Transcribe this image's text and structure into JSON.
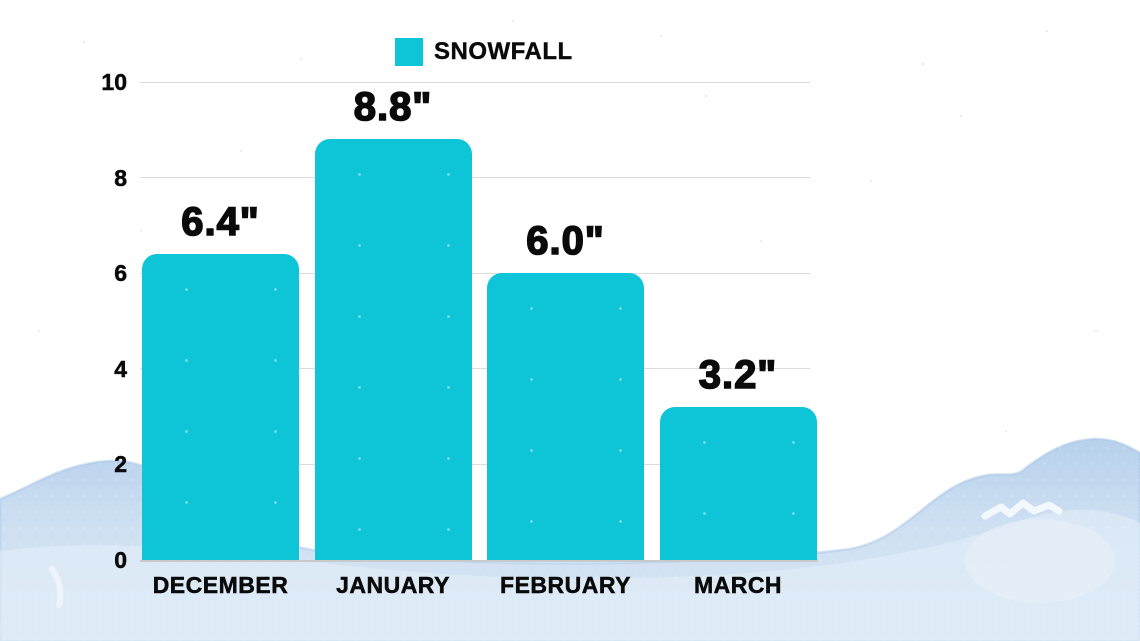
{
  "legend": {
    "label": "SNOWFALL",
    "swatch_color": "#0ec5d8"
  },
  "chart_data": {
    "type": "bar",
    "title": "",
    "xlabel": "",
    "ylabel": "",
    "categories": [
      "DECEMBER",
      "JANUARY",
      "FEBRUARY",
      "MARCH"
    ],
    "values": [
      6.4,
      8.8,
      6.0,
      3.2
    ],
    "value_labels": [
      "6.4\"",
      "8.8\"",
      "6.0\"",
      "3.2\""
    ],
    "series_name": "SNOWFALL",
    "unit": "inches",
    "ylim": [
      0,
      10
    ],
    "yticks": [
      0,
      2,
      4,
      6,
      8,
      10
    ],
    "grid": true,
    "legend_position": "top-center",
    "bar_color": "#0ec5d8",
    "gridline_color": "#dcdcdc",
    "text_color": "#0a0a0a"
  },
  "background": {
    "mountain_edge_color": "#a8c6e5",
    "mountain_fill_top": "#bcd5ee",
    "mountain_fill_bottom": "#d9e7f5",
    "snow_mark_color": "#f4f9fd"
  }
}
